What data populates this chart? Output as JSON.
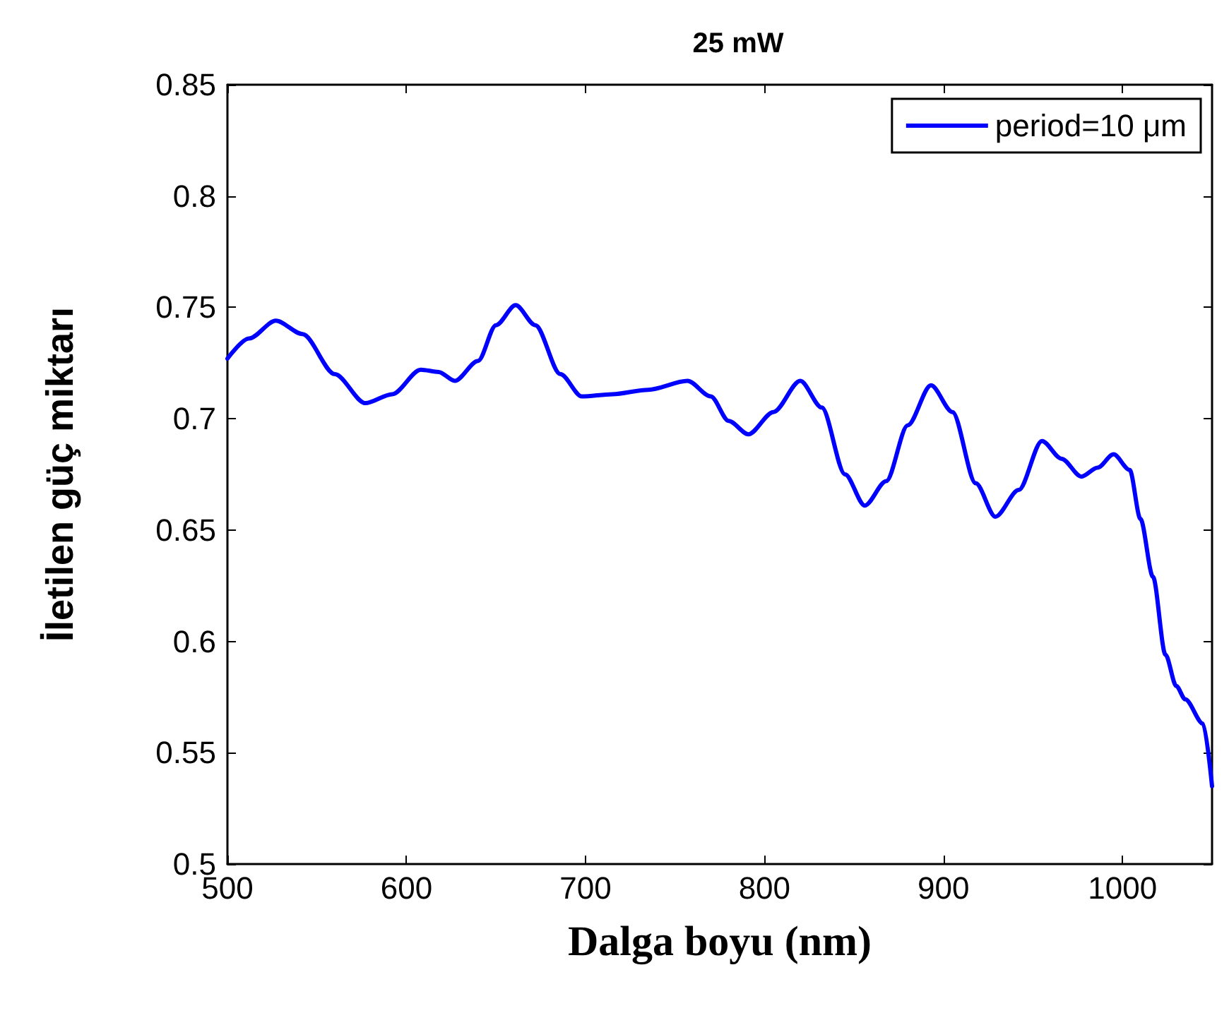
{
  "chart_data": {
    "type": "line",
    "title": "25 mW",
    "xlabel": "Dalga boyu (nm)",
    "ylabel": "İletilen güç miktarı",
    "xlim": [
      500,
      1050
    ],
    "xticks": [
      500,
      600,
      700,
      800,
      900,
      1000
    ],
    "ylim": [
      0.5,
      0.85
    ],
    "yticks": [
      0.5,
      0.55,
      0.6,
      0.65,
      0.7,
      0.75,
      0.8,
      0.85
    ],
    "grid": false,
    "legend": "top right",
    "marker": "none",
    "line_style": "solid",
    "series": [
      {
        "name": "period=10 μm",
        "color": "#0000ff",
        "x": [
          500,
          512,
          527,
          542,
          560,
          577,
          592,
          608,
          618,
          627,
          640,
          650,
          661,
          672,
          686,
          698,
          715,
          735,
          757,
          770,
          780,
          791,
          805,
          820,
          832,
          845,
          856,
          868,
          880,
          893,
          905,
          918,
          929,
          942,
          955,
          966,
          977,
          986,
          995,
          1004,
          1010,
          1017,
          1024,
          1030,
          1035,
          1045,
          1050
        ],
        "values": [
          0.727,
          0.736,
          0.744,
          0.738,
          0.72,
          0.707,
          0.711,
          0.722,
          0.721,
          0.717,
          0.726,
          0.742,
          0.751,
          0.742,
          0.72,
          0.71,
          0.711,
          0.713,
          0.717,
          0.71,
          0.699,
          0.693,
          0.703,
          0.717,
          0.705,
          0.675,
          0.661,
          0.672,
          0.697,
          0.715,
          0.703,
          0.671,
          0.656,
          0.668,
          0.69,
          0.682,
          0.674,
          0.678,
          0.684,
          0.677,
          0.655,
          0.629,
          0.594,
          0.58,
          0.574,
          0.563,
          0.535
        ]
      }
    ]
  }
}
